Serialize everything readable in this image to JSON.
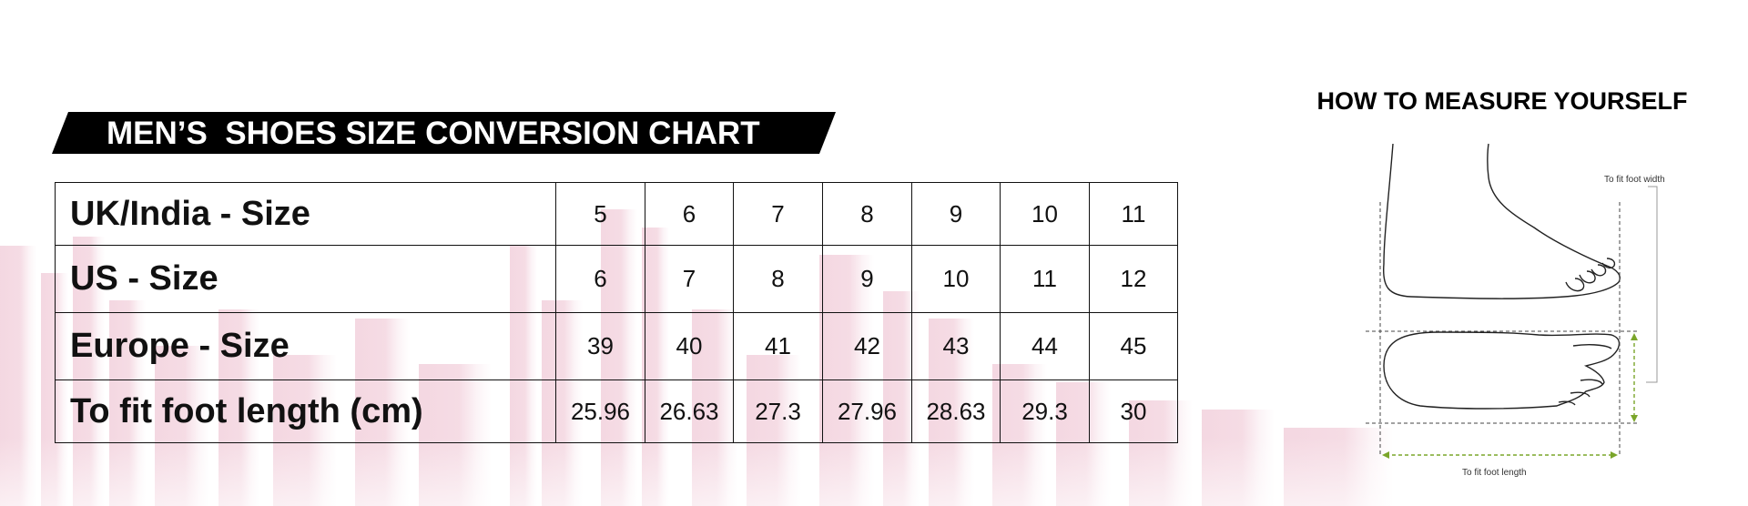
{
  "banner": {
    "title": "MEN’S  SHOES SIZE CONVERSION CHART"
  },
  "table": {
    "rows": [
      {
        "label": "UK/India - Size",
        "values": [
          "5",
          "6",
          "7",
          "8",
          "9",
          "10",
          "11"
        ]
      },
      {
        "label": "US - Size",
        "values": [
          "6",
          "7",
          "8",
          "9",
          "10",
          "11",
          "12"
        ]
      },
      {
        "label": "Europe - Size",
        "values": [
          "39",
          "40",
          "41",
          "42",
          "43",
          "44",
          "45"
        ]
      },
      {
        "label": "To fit foot length (cm)",
        "values": [
          "25.96",
          "26.63",
          "27.3",
          "27.96",
          "28.63",
          "29.3",
          "30"
        ]
      }
    ]
  },
  "measure": {
    "title": "HOW TO MEASURE YOURSELF",
    "width_label": "To fit foot width",
    "length_label": "To fit foot length"
  },
  "colors": {
    "banner_bg": "#000000",
    "arrow_green": "#7aa52a",
    "skyline": "#f2c9d6"
  }
}
